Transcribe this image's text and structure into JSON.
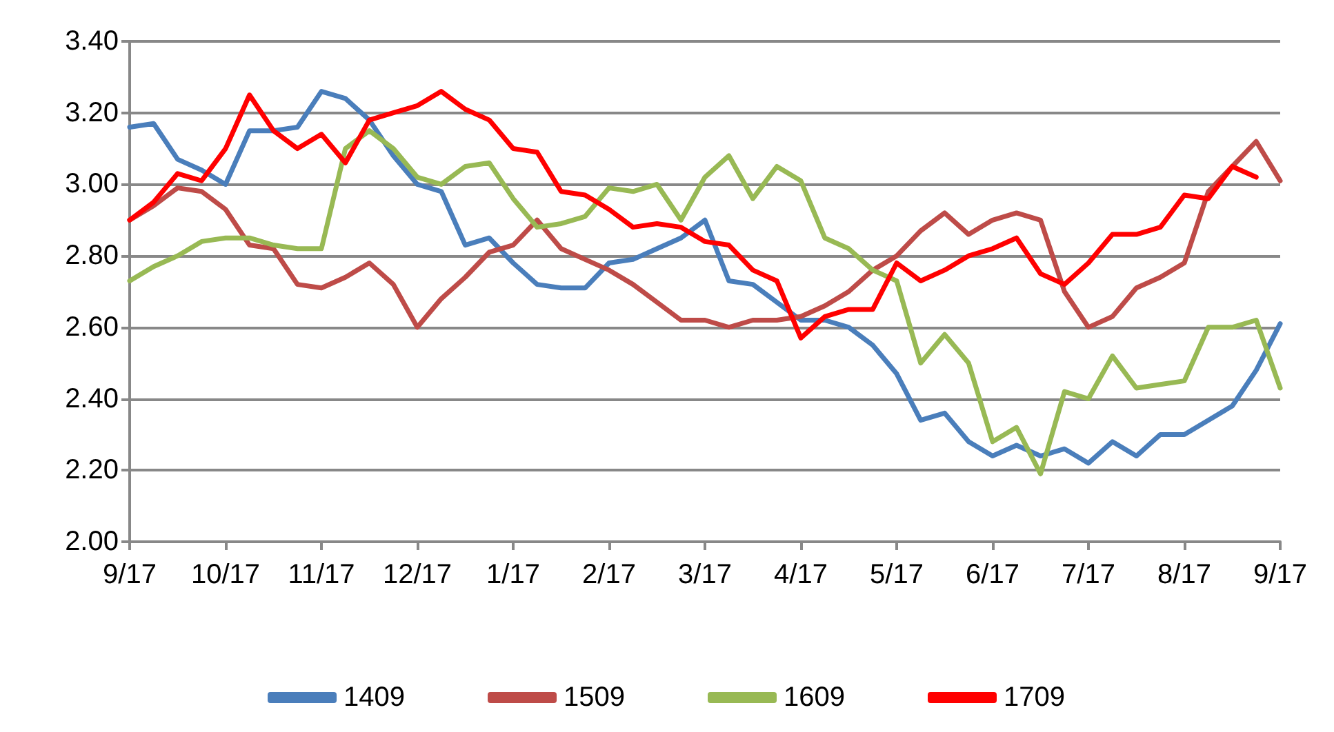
{
  "chart_data": {
    "type": "line",
    "categories": [
      "9/17",
      null,
      null,
      null,
      "10/17",
      null,
      null,
      null,
      "11/17",
      null,
      null,
      null,
      "12/17",
      null,
      null,
      null,
      "1/17",
      null,
      null,
      null,
      "2/17",
      null,
      null,
      null,
      "3/17",
      null,
      null,
      null,
      "4/17",
      null,
      null,
      null,
      "5/17",
      null,
      null,
      null,
      "6/17",
      null,
      null,
      null,
      "7/17",
      null,
      null,
      null,
      "8/17",
      null,
      null,
      null,
      "9/17"
    ],
    "series": [
      {
        "name": "1409",
        "color": "#4a7ebb",
        "values": [
          3.16,
          3.17,
          3.07,
          3.04,
          3.0,
          3.15,
          3.15,
          3.16,
          3.26,
          3.24,
          3.18,
          3.08,
          3.0,
          2.98,
          2.83,
          2.85,
          2.78,
          2.72,
          2.71,
          2.71,
          2.78,
          2.79,
          2.82,
          2.85,
          2.9,
          2.73,
          2.72,
          2.67,
          2.62,
          2.62,
          2.6,
          2.55,
          2.47,
          2.34,
          2.36,
          2.28,
          2.24,
          2.27,
          2.24,
          2.26,
          2.22,
          2.28,
          2.24,
          2.3,
          2.3,
          2.34,
          2.38,
          2.48,
          2.61
        ]
      },
      {
        "name": "1509",
        "color": "#be4b48",
        "values": [
          2.9,
          2.94,
          2.99,
          2.98,
          2.93,
          2.83,
          2.82,
          2.72,
          2.71,
          2.74,
          2.78,
          2.72,
          2.6,
          2.68,
          2.74,
          2.81,
          2.83,
          2.9,
          2.82,
          2.79,
          2.76,
          2.72,
          2.67,
          2.62,
          2.62,
          2.6,
          2.62,
          2.62,
          2.63,
          2.66,
          2.7,
          2.76,
          2.8,
          2.87,
          2.92,
          2.86,
          2.9,
          2.92,
          2.9,
          2.7,
          2.6,
          2.63,
          2.71,
          2.74,
          2.78,
          2.98,
          3.05,
          3.12,
          3.01
        ]
      },
      {
        "name": "1609",
        "color": "#98b954",
        "values": [
          2.73,
          2.77,
          2.8,
          2.84,
          2.85,
          2.85,
          2.83,
          2.82,
          2.82,
          3.1,
          3.15,
          3.1,
          3.02,
          3.0,
          3.05,
          3.06,
          2.96,
          2.88,
          2.89,
          2.91,
          2.99,
          2.98,
          3.0,
          2.9,
          3.02,
          3.08,
          2.96,
          3.05,
          3.01,
          2.85,
          2.82,
          2.76,
          2.73,
          2.5,
          2.58,
          2.5,
          2.28,
          2.32,
          2.19,
          2.42,
          2.4,
          2.52,
          2.43,
          2.44,
          2.45,
          2.6,
          2.6,
          2.62,
          2.43
        ]
      },
      {
        "name": "1709",
        "color": "#ff0000",
        "values": [
          2.9,
          2.95,
          3.03,
          3.01,
          3.1,
          3.25,
          3.15,
          3.1,
          3.14,
          3.06,
          3.18,
          3.2,
          3.22,
          3.26,
          3.21,
          3.18,
          3.1,
          3.09,
          2.98,
          2.97,
          2.93,
          2.88,
          2.89,
          2.88,
          2.84,
          2.83,
          2.76,
          2.73,
          2.57,
          2.63,
          2.65,
          2.65,
          2.78,
          2.73,
          2.76,
          2.8,
          2.82,
          2.85,
          2.75,
          2.72,
          2.78,
          2.86,
          2.86,
          2.88,
          2.97,
          2.96,
          3.05,
          3.02,
          null
        ]
      }
    ],
    "ylim": [
      2.0,
      3.4
    ],
    "yticks": [
      {
        "value": 2.0,
        "label": "2.00"
      },
      {
        "value": 2.2,
        "label": "2.20"
      },
      {
        "value": 2.4,
        "label": "2.40"
      },
      {
        "value": 2.6,
        "label": "2.60"
      },
      {
        "value": 2.8,
        "label": "2.80"
      },
      {
        "value": 3.0,
        "label": "3.00"
      },
      {
        "value": 3.2,
        "label": "3.20"
      },
      {
        "value": 3.4,
        "label": "3.40"
      }
    ],
    "grid": "y",
    "legend": "bottom",
    "marker": "none",
    "line_style": "solid"
  }
}
